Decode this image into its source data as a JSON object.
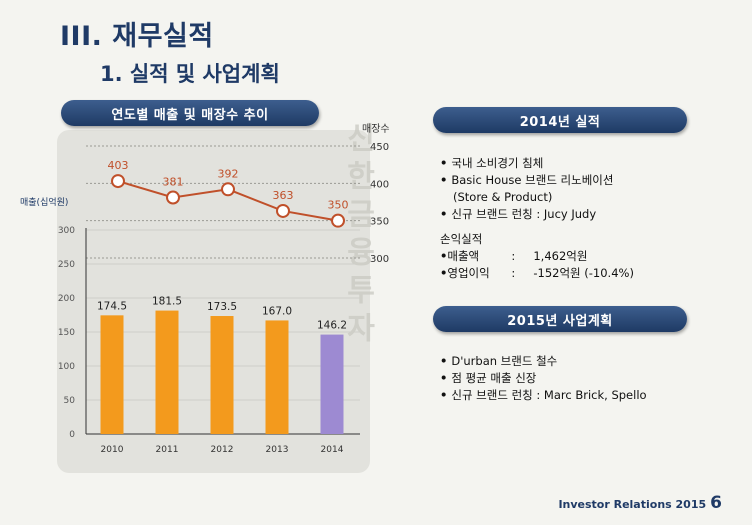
{
  "section_title": "III. 재무실적",
  "subsection_title": "1. 실적 및 사업계획",
  "chart_heading": "연도별 매출 및 매장수 추이",
  "watermark": "신한금융투자",
  "chart_data": {
    "type": "bar+line",
    "categories": [
      "2010",
      "2011",
      "2012",
      "2013",
      "2014"
    ],
    "series": [
      {
        "name": "매출(십억원)",
        "type": "bar",
        "values": [
          174.5,
          181.5,
          173.5,
          167.0,
          146.2
        ],
        "labels": [
          "174.5",
          "181.5",
          "173.5",
          "167.0",
          "146.2"
        ]
      },
      {
        "name": "매장수",
        "type": "line",
        "values": [
          403,
          381,
          392,
          363,
          350
        ],
        "labels": [
          "403",
          "381",
          "392",
          "363",
          "350"
        ]
      }
    ],
    "left_axis": {
      "label": "매출(십억원)",
      "ticks": [
        "0",
        "50",
        "100",
        "150",
        "200",
        "250",
        "300"
      ],
      "range": [
        0,
        300
      ]
    },
    "right_axis": {
      "label": "매장수",
      "ticks": [
        "300",
        "350",
        "400",
        "450"
      ],
      "range": [
        300,
        450
      ]
    },
    "colors": {
      "bar": "#f39a1d",
      "bar_last": "#9d8ad2",
      "line": "#c0502a",
      "marker_fill": "#ffffff",
      "label": "#c0502a"
    }
  },
  "perf_heading": "2014년 실적",
  "perf_items": [
    "국내 소비경기 침체",
    "Basic House 브랜드 리노베이션",
    "(Store & Product)",
    "신규 브랜드 런칭 : Jucy Judy"
  ],
  "pl_heading": "손익실적",
  "pl_rows": [
    {
      "label": "매출액",
      "colon": ":",
      "value": "1,462억원"
    },
    {
      "label": "영업이익",
      "colon": ":",
      "value": "-152억원 (-10.4%)"
    }
  ],
  "plan_heading": "2015년 사업계획",
  "plan_items": [
    "D'urban 브랜드 철수",
    "점 평균 매출 신장",
    "신규 브랜드 런칭 : Marc Brick, Spello"
  ],
  "footer": {
    "text": "Investor Relations 2015",
    "page": "6"
  }
}
